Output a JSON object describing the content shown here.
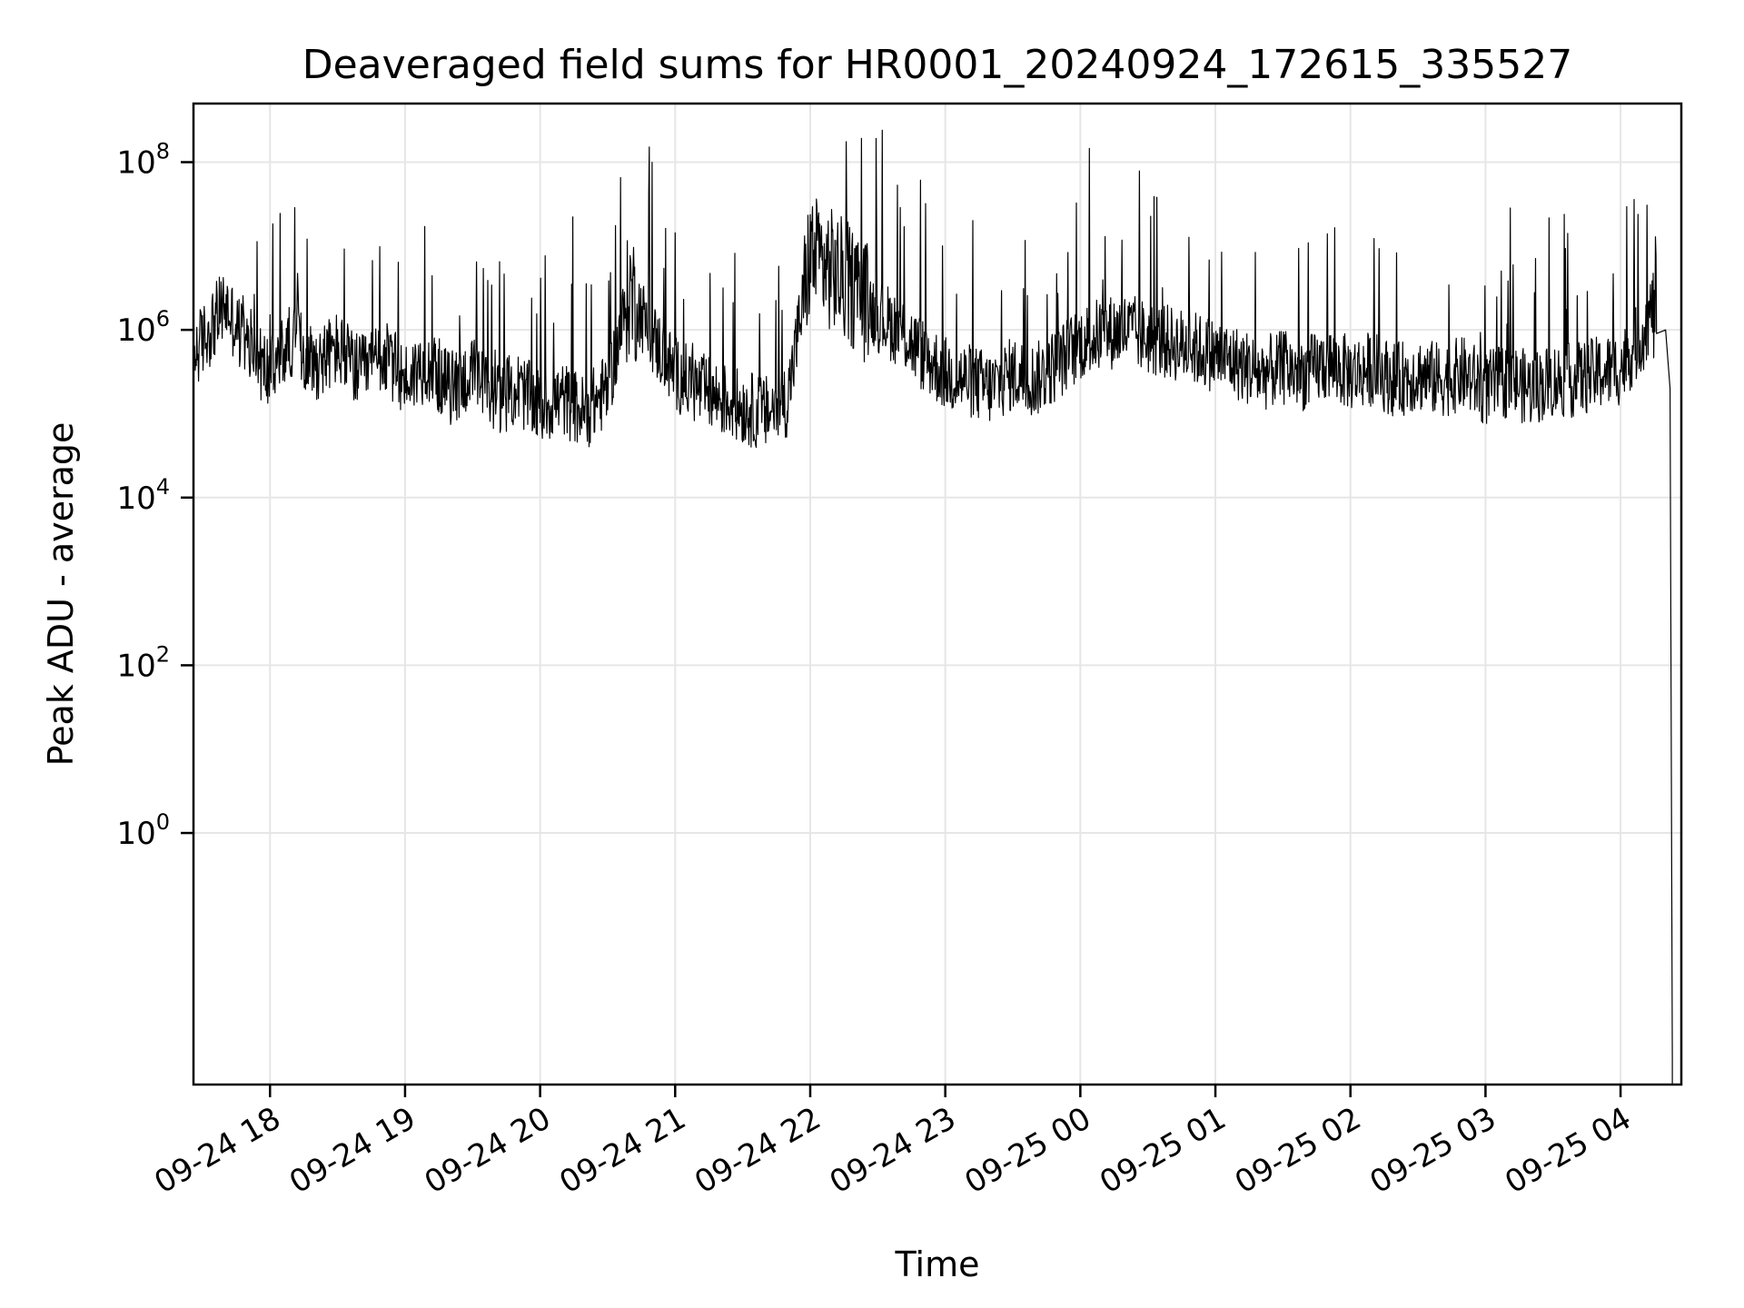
{
  "chart_data": {
    "type": "line",
    "title": "Deaveraged field sums for HR0001_20240924_172615_335527",
    "xlabel": "Time",
    "ylabel": "Peak ADU - average",
    "yscale": "log",
    "ylim": [
      0.001,
      500000000
    ],
    "xlim": [
      "2024-09-24 17:26",
      "2024-09-25 04:27"
    ],
    "grid": true,
    "legend": "none",
    "line_color": "#000000",
    "x_ticks": [
      {
        "value": "2024-09-24 18:00",
        "label": "09-24 18"
      },
      {
        "value": "2024-09-24 19:00",
        "label": "09-24 19"
      },
      {
        "value": "2024-09-24 20:00",
        "label": "09-24 20"
      },
      {
        "value": "2024-09-24 21:00",
        "label": "09-24 21"
      },
      {
        "value": "2024-09-24 22:00",
        "label": "09-24 22"
      },
      {
        "value": "2024-09-24 23:00",
        "label": "09-24 23"
      },
      {
        "value": "2024-09-25 00:00",
        "label": "09-25 00"
      },
      {
        "value": "2024-09-25 01:00",
        "label": "09-25 01"
      },
      {
        "value": "2024-09-25 02:00",
        "label": "09-25 02"
      },
      {
        "value": "2024-09-25 03:00",
        "label": "09-25 03"
      },
      {
        "value": "2024-09-25 04:00",
        "label": "09-25 04"
      }
    ],
    "y_ticks": [
      {
        "value": 1,
        "base": "10",
        "exp": "0"
      },
      {
        "value": 100,
        "base": "10",
        "exp": "2"
      },
      {
        "value": 10000,
        "base": "10",
        "exp": "4"
      },
      {
        "value": 1000000,
        "base": "10",
        "exp": "6"
      },
      {
        "value": 100000000,
        "base": "10",
        "exp": "8"
      }
    ],
    "x": [
      "2024-09-24 17:26",
      "2024-09-24 17:40",
      "2024-09-24 17:50",
      "2024-09-24 18:00",
      "2024-09-24 18:10",
      "2024-09-24 18:20",
      "2024-09-24 18:30",
      "2024-09-24 18:40",
      "2024-09-24 18:50",
      "2024-09-24 19:00",
      "2024-09-24 19:10",
      "2024-09-24 19:20",
      "2024-09-24 19:30",
      "2024-09-24 19:40",
      "2024-09-24 19:50",
      "2024-09-24 20:00",
      "2024-09-24 20:10",
      "2024-09-24 20:20",
      "2024-09-24 20:30",
      "2024-09-24 20:40",
      "2024-09-24 20:50",
      "2024-09-24 21:00",
      "2024-09-24 21:10",
      "2024-09-24 21:20",
      "2024-09-24 21:30",
      "2024-09-24 21:40",
      "2024-09-24 21:50",
      "2024-09-24 22:00",
      "2024-09-24 22:10",
      "2024-09-24 22:20",
      "2024-09-24 22:30",
      "2024-09-24 22:40",
      "2024-09-24 22:50",
      "2024-09-24 23:00",
      "2024-09-24 23:10",
      "2024-09-24 23:20",
      "2024-09-24 23:30",
      "2024-09-24 23:40",
      "2024-09-24 23:50",
      "2024-09-25 00:00",
      "2024-09-25 00:10",
      "2024-09-25 00:20",
      "2024-09-25 00:30",
      "2024-09-25 00:40",
      "2024-09-25 00:50",
      "2024-09-25 01:00",
      "2024-09-25 01:10",
      "2024-09-25 01:20",
      "2024-09-25 01:30",
      "2024-09-25 01:40",
      "2024-09-25 01:50",
      "2024-09-25 02:00",
      "2024-09-25 02:10",
      "2024-09-25 02:20",
      "2024-09-25 02:30",
      "2024-09-25 02:40",
      "2024-09-25 02:50",
      "2024-09-25 03:00",
      "2024-09-25 03:10",
      "2024-09-25 03:20",
      "2024-09-25 03:30",
      "2024-09-25 03:40",
      "2024-09-25 03:50",
      "2024-09-25 04:00",
      "2024-09-25 04:10",
      "2024-09-25 04:16",
      "2024-09-25 04:20",
      "2024-09-25 04:22",
      "2024-09-25 04:23"
    ],
    "y": [
      500000,
      2000000,
      600000,
      300000,
      800000,
      400000,
      600000,
      300000,
      500000,
      250000,
      400000,
      200000,
      300000,
      150000,
      200000,
      120000,
      150000,
      100000,
      200000,
      3000000,
      800000,
      300000,
      200000,
      150000,
      120000,
      100000,
      150000,
      8000000,
      5000000,
      3000000,
      1500000,
      1000000,
      500000,
      300000,
      250000,
      200000,
      300000,
      250000,
      400000,
      700000,
      900000,
      1000000,
      800000,
      700000,
      600000,
      500000,
      400000,
      300000,
      350000,
      300000,
      400000,
      300000,
      350000,
      250000,
      300000,
      250000,
      300000,
      200000,
      250000,
      200000,
      250000,
      250000,
      300000,
      350000,
      900000,
      2500000,
      1000000,
      200000,
      0.002
    ]
  }
}
